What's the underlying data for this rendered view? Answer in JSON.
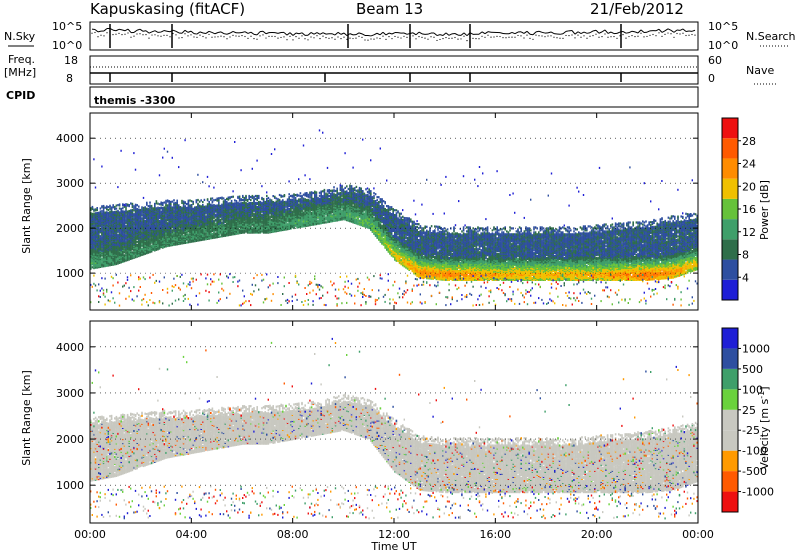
{
  "header": {
    "station": "Kapuskasing (fitACF)",
    "beam": "Beam 13",
    "date": "21/Feb/2012"
  },
  "strips": {
    "nsky_label": "N.Sky",
    "nsearch_label": "N.Search",
    "nsky_ticks": [
      "10^5",
      "10^0"
    ],
    "nsearch_ticks": [
      "10^5",
      "10^0"
    ],
    "freq_label_1": "Freq.",
    "freq_label_2": "[MHz]",
    "freq_ticks": [
      "18",
      "8"
    ],
    "nave_label": "Nave",
    "nave_ticks": [
      "60",
      "0"
    ],
    "cpid_label": "CPID",
    "cpid_value": "themis -3300"
  },
  "colors": {
    "power": [
      "#1f1fd6",
      "#2e4fa0",
      "#2f6e4a",
      "#3f9f6a",
      "#66c23a",
      "#f0c000",
      "#ff8c00",
      "#ff5a00",
      "#ee1010"
    ],
    "velocity": [
      "#ee1010",
      "#ff5a00",
      "#ff9a00",
      "#c8c8c0",
      "#c8c8c0",
      "#6ad23c",
      "#3f9f6a",
      "#2e4fa0",
      "#1f1fd6"
    ],
    "grid": "#cfcfcf",
    "dots": "#000000"
  },
  "chart_data": [
    {
      "type": "heatmap",
      "title": "",
      "xlabel": "Time UT",
      "ylabel": "Slant Range [km]",
      "xlim": [
        0,
        24
      ],
      "ylim": [
        180,
        4560
      ],
      "x_tick_labels": [
        "00:00",
        "04:00",
        "08:00",
        "12:00",
        "16:00",
        "20:00",
        "00:00"
      ],
      "y_ticks": [
        1000,
        2000,
        3000,
        4000
      ],
      "colorbar": {
        "label": "Power [dB]",
        "ticks": [
          4,
          8,
          12,
          16,
          20,
          24,
          28
        ],
        "range": [
          0,
          30
        ]
      },
      "series": [
        {
          "name": "",
          "hours": [
            0,
            1,
            2,
            3,
            4,
            5,
            6,
            7,
            8,
            9,
            10,
            11,
            12,
            13,
            14,
            15,
            16,
            17,
            18,
            19,
            20,
            21,
            22,
            23,
            24
          ],
          "lower_range_km": [
            1200,
            1300,
            1500,
            1700,
            1800,
            1900,
            2000,
            2000,
            2100,
            2200,
            2300,
            2100,
            1400,
            1000,
            950,
            950,
            950,
            950,
            950,
            950,
            950,
            950,
            950,
            1000,
            1200
          ],
          "upper_range_km": [
            2300,
            2350,
            2400,
            2450,
            2450,
            2500,
            2550,
            2550,
            2600,
            2650,
            2800,
            2700,
            2250,
            1900,
            1850,
            1850,
            1850,
            1850,
            1850,
            1850,
            1900,
            1950,
            2000,
            2100,
            2200
          ],
          "edge_power_db": [
            12,
            10,
            10,
            10,
            10,
            10,
            10,
            10,
            12,
            12,
            12,
            14,
            18,
            22,
            22,
            22,
            20,
            20,
            20,
            20,
            20,
            22,
            24,
            22,
            18
          ],
          "background_power_db": 6
        }
      ]
    },
    {
      "type": "heatmap",
      "title": "",
      "xlabel": "Time UT",
      "ylabel": "Slant Range [km]",
      "xlim": [
        0,
        24
      ],
      "ylim": [
        180,
        4560
      ],
      "x_tick_labels": [
        "00:00",
        "04:00",
        "08:00",
        "12:00",
        "16:00",
        "20:00",
        "00:00"
      ],
      "y_ticks": [
        1000,
        2000,
        3000,
        4000
      ],
      "colorbar": {
        "label": "Velocity [m s^-1]",
        "ticks": [
          "-1000",
          "-500",
          "-100",
          "-25",
          "25",
          "100",
          "500",
          "1000"
        ]
      },
      "series": [
        {
          "name": "",
          "hours": [
            0,
            1,
            2,
            3,
            4,
            5,
            6,
            7,
            8,
            9,
            10,
            11,
            12,
            13,
            14,
            15,
            16,
            17,
            18,
            19,
            20,
            21,
            22,
            23,
            24
          ],
          "lower_range_km": [
            1200,
            1300,
            1500,
            1700,
            1800,
            1900,
            2000,
            2000,
            2100,
            2200,
            2300,
            2100,
            1400,
            1000,
            950,
            950,
            950,
            950,
            950,
            950,
            950,
            950,
            950,
            1000,
            1200
          ],
          "upper_range_km": [
            2300,
            2350,
            2400,
            2450,
            2450,
            2500,
            2550,
            2550,
            2600,
            2650,
            2800,
            2700,
            2250,
            1900,
            1850,
            1850,
            1850,
            1850,
            1850,
            1850,
            1900,
            1950,
            2000,
            2100,
            2200
          ],
          "typical_velocity_ms": 0
        }
      ]
    }
  ]
}
